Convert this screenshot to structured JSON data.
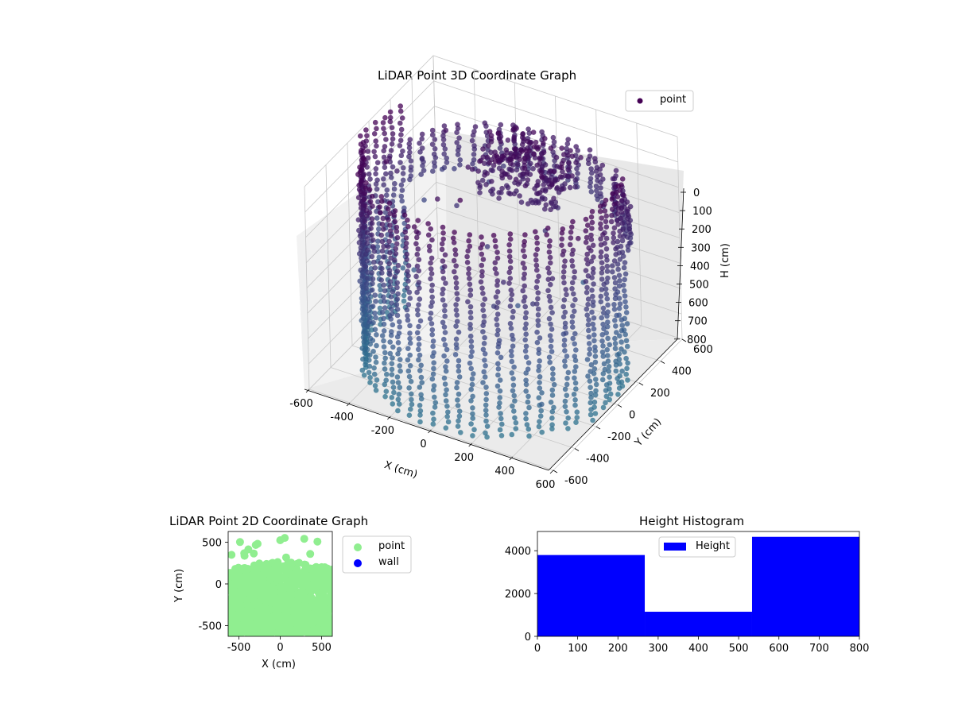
{
  "chart_data": [
    {
      "type": "scatter3d",
      "title": "LiDAR Point 3D Coordinate Graph",
      "xlabel": "X (cm)",
      "ylabel": "Y (cm)",
      "zlabel": "H (cm)",
      "xlim": [
        -600,
        600
      ],
      "ylim": [
        -600,
        600
      ],
      "zlim": [
        800,
        0
      ],
      "xticks": [
        "-600",
        "-400",
        "-200",
        "0",
        "200",
        "400",
        "600"
      ],
      "yticks": [
        "-600",
        "-400",
        "-200",
        "0",
        "200",
        "400",
        "600"
      ],
      "zticks": [
        "0",
        "100",
        "200",
        "300",
        "400",
        "500",
        "600",
        "700",
        "800"
      ],
      "grid": true,
      "legend": {
        "position": "top-right",
        "entries": [
          "point"
        ]
      },
      "colormap": "viridis",
      "colors": {
        "point_dark": "#440154",
        "point_mid": "#3b528b"
      },
      "description_of_shape": "ring of vertical point columns at radius ~600 cm, heights 0–800 cm, plus a dense cluster near the ceiling"
    },
    {
      "type": "scatter",
      "title": "LiDAR Point 2D Coordinate Graph",
      "xlabel": "X (cm)",
      "ylabel": "Y (cm)",
      "xlim": [
        -630,
        630
      ],
      "ylim": [
        -630,
        630
      ],
      "xticks": [
        "-500",
        "0",
        "500"
      ],
      "yticks": [
        "-500",
        "0",
        "500"
      ],
      "legend": {
        "position": "right",
        "entries": [
          "point",
          "wall"
        ]
      },
      "colors": {
        "point": "#90ee90",
        "wall": "#0000ff"
      }
    },
    {
      "type": "bar",
      "title": "Height Histogram",
      "bins": [
        [
          0,
          266.7
        ],
        [
          266.7,
          533.3
        ],
        [
          533.3,
          800
        ]
      ],
      "values": [
        3800,
        1150,
        4650
      ],
      "xlim": [
        0,
        800
      ],
      "ylim": [
        0,
        4900
      ],
      "xticks": [
        "0",
        "100",
        "200",
        "300",
        "400",
        "500",
        "600",
        "700",
        "800"
      ],
      "yticks": [
        "0",
        "2000",
        "4000"
      ],
      "legend": {
        "position": "top-center",
        "entries": [
          "Height"
        ]
      },
      "colors": {
        "bar": "#0000ff"
      }
    }
  ]
}
